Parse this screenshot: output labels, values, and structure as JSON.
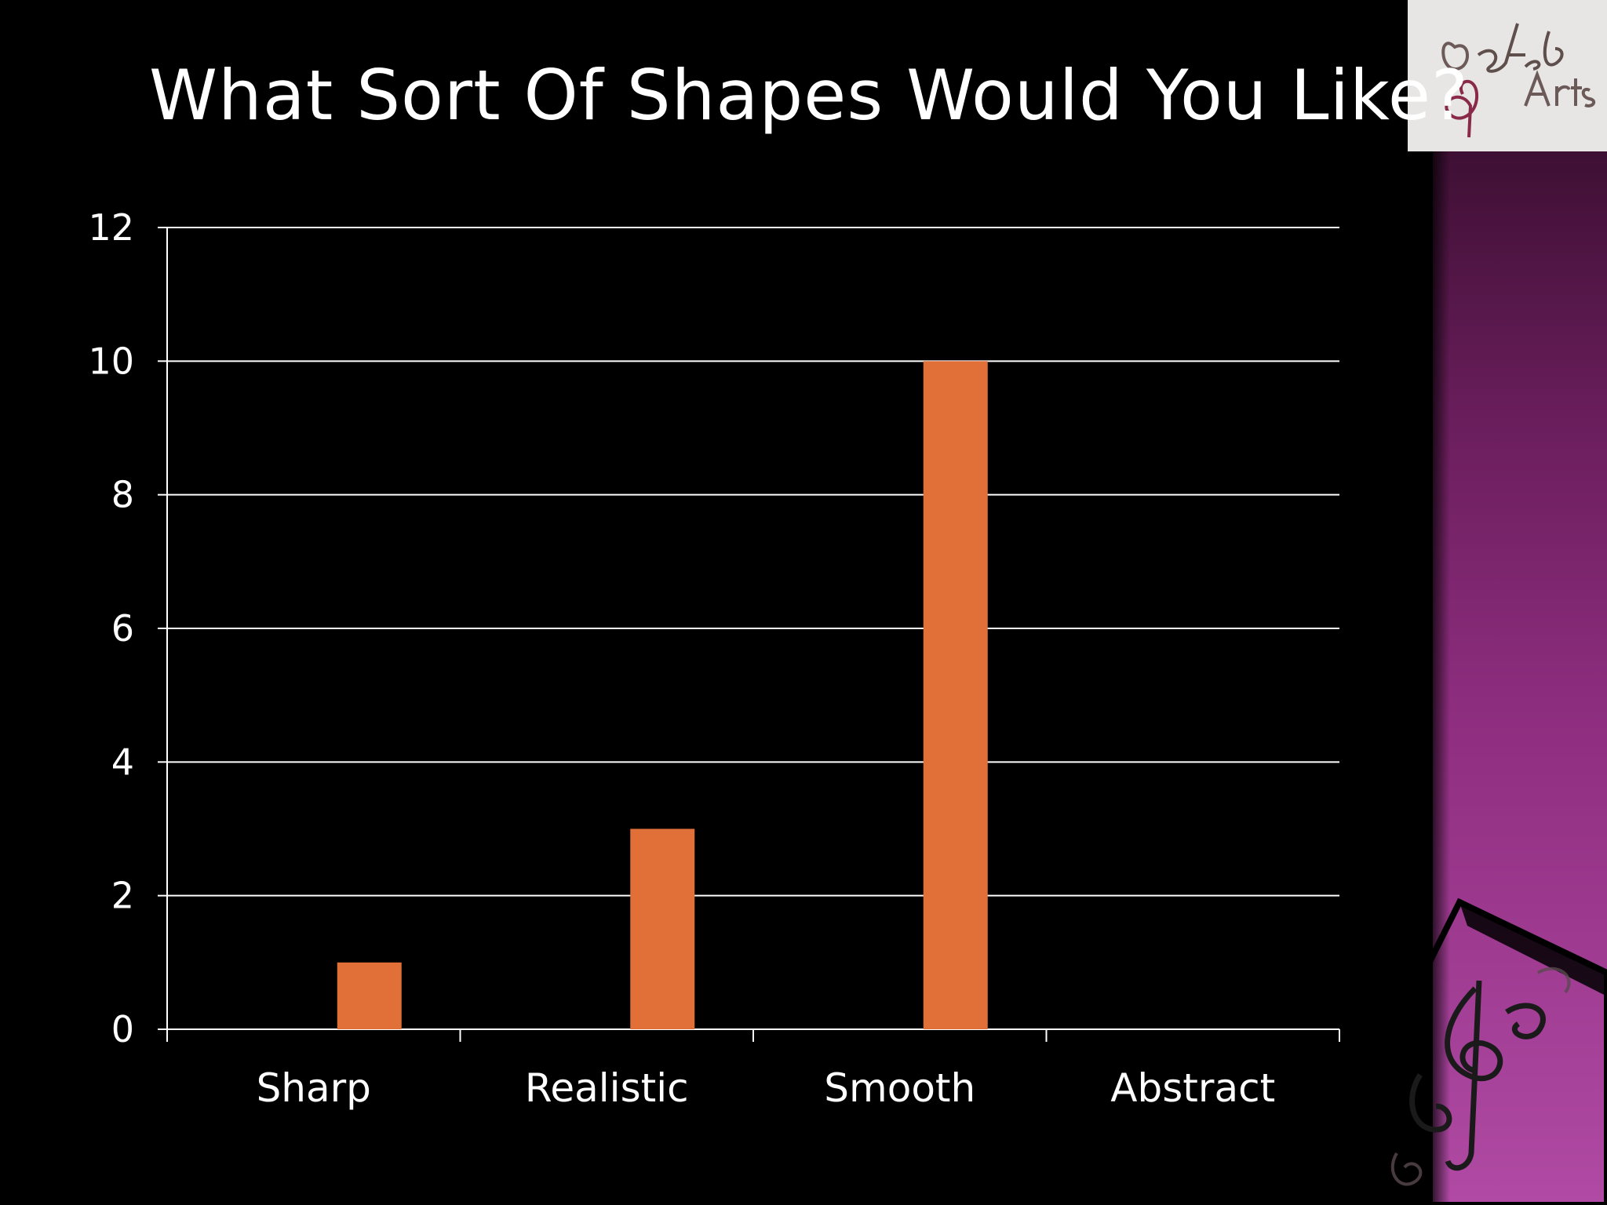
{
  "slide": {
    "title": "What Sort Of Shapes Would You Like?",
    "logo_text": "Octave Arts"
  },
  "colors": {
    "background": "#000000",
    "bar": "#e07038",
    "gridline": "#ffffff",
    "text": "#ffffff",
    "side_panel": "#8f2e80"
  },
  "chart_data": {
    "type": "bar",
    "title": "What Sort Of Shapes Would You Like?",
    "categories": [
      "Sharp",
      "Realistic",
      "Smooth",
      "Abstract"
    ],
    "values": [
      1,
      3,
      10,
      0
    ],
    "xlabel": "",
    "ylabel": "",
    "ylim": [
      0,
      12
    ],
    "yticks": [
      0,
      2,
      4,
      6,
      8,
      10,
      12
    ],
    "grid": true,
    "legend": "none"
  }
}
